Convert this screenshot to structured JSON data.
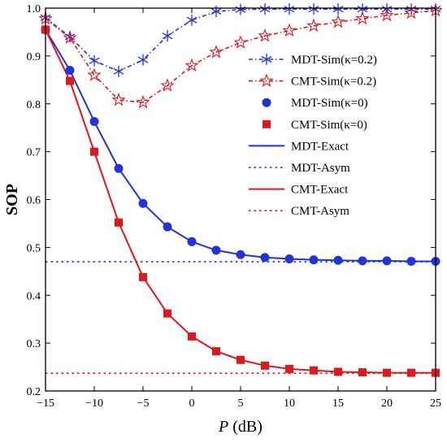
{
  "chart_data": {
    "type": "line",
    "xlabel_var": "P",
    "xlabel_unit": " (dB)",
    "ylabel": "SOP",
    "xlim": [
      -15,
      25
    ],
    "ylim": [
      0.2,
      1.0
    ],
    "xticks": [
      -15,
      -10,
      -5,
      0,
      5,
      10,
      15,
      20,
      25
    ],
    "yticks": [
      0.2,
      0.3,
      0.4,
      0.5,
      0.6,
      0.7,
      0.8,
      0.9,
      1.0
    ],
    "ytick_labels": [
      "0.2",
      "0.3",
      "0.4",
      "0.5",
      "0.6",
      "0.7",
      "0.8",
      "0.9",
      "1.0"
    ],
    "grid": false,
    "legend_position": "right",
    "colors": {
      "blue": "#1f33e0",
      "red": "#e3161b"
    },
    "series": [
      {
        "name": "MDT-Sim(κ=0.2)",
        "color": "blue",
        "style": "dashdot",
        "marker": "asterisk",
        "x": [
          -15,
          -12.5,
          -10,
          -7.5,
          -5,
          -2.5,
          0,
          2.5,
          5,
          7.5,
          10,
          12.5,
          15,
          17.5,
          20,
          22.5,
          25
        ],
        "y": [
          0.98,
          0.94,
          0.89,
          0.868,
          0.892,
          0.942,
          0.975,
          0.993,
          0.997,
          0.998,
          0.998,
          0.998,
          0.998,
          0.998,
          0.998,
          0.998,
          0.998
        ]
      },
      {
        "name": "CMT-Sim(κ=0.2)",
        "color": "red",
        "style": "dashdot",
        "marker": "star",
        "x": [
          -15,
          -12.5,
          -10,
          -7.5,
          -5,
          -2.5,
          0,
          2.5,
          5,
          7.5,
          10,
          12.5,
          15,
          17.5,
          20,
          22.5,
          25
        ],
        "y": [
          0.978,
          0.938,
          0.86,
          0.808,
          0.803,
          0.838,
          0.88,
          0.908,
          0.928,
          0.942,
          0.953,
          0.963,
          0.971,
          0.978,
          0.985,
          0.99,
          0.995
        ]
      },
      {
        "name": "MDT-Sim(κ=0)",
        "color": "blue",
        "style": "none",
        "marker": "circle",
        "x": [
          -15,
          -12.5,
          -10,
          -7.5,
          -5,
          -2.5,
          0,
          2.5,
          5,
          7.5,
          10,
          12.5,
          15,
          17.5,
          20,
          22.5,
          25
        ],
        "y": [
          0.955,
          0.87,
          0.763,
          0.665,
          0.592,
          0.543,
          0.512,
          0.494,
          0.485,
          0.479,
          0.476,
          0.474,
          0.473,
          0.472,
          0.472,
          0.471,
          0.471
        ]
      },
      {
        "name": "CMT-Sim(κ=0)",
        "color": "red",
        "style": "none",
        "marker": "square",
        "x": [
          -15,
          -12.5,
          -10,
          -7.5,
          -5,
          -2.5,
          0,
          2.5,
          5,
          7.5,
          10,
          12.5,
          15,
          17.5,
          20,
          22.5,
          25
        ],
        "y": [
          0.955,
          0.848,
          0.7,
          0.552,
          0.438,
          0.362,
          0.314,
          0.283,
          0.265,
          0.253,
          0.246,
          0.243,
          0.24,
          0.239,
          0.238,
          0.238,
          0.238
        ]
      },
      {
        "name": "MDT-Exact",
        "color": "blue",
        "style": "solid",
        "marker": "none",
        "x": [
          -15,
          -12.5,
          -10,
          -7.5,
          -5,
          -2.5,
          0,
          2.5,
          5,
          7.5,
          10,
          12.5,
          15,
          17.5,
          20,
          22.5,
          25
        ],
        "y": [
          0.955,
          0.87,
          0.763,
          0.665,
          0.592,
          0.543,
          0.512,
          0.494,
          0.485,
          0.479,
          0.476,
          0.474,
          0.473,
          0.472,
          0.472,
          0.471,
          0.471
        ]
      },
      {
        "name": "MDT-Asym",
        "color": "blue",
        "style": "dotted",
        "marker": "none",
        "x": [
          -15,
          25
        ],
        "y": [
          0.47,
          0.47
        ]
      },
      {
        "name": "CMT-Exact",
        "color": "red",
        "style": "solid",
        "marker": "none",
        "x": [
          -15,
          -12.5,
          -10,
          -7.5,
          -5,
          -2.5,
          0,
          2.5,
          5,
          7.5,
          10,
          12.5,
          15,
          17.5,
          20,
          22.5,
          25
        ],
        "y": [
          0.955,
          0.848,
          0.7,
          0.552,
          0.438,
          0.362,
          0.314,
          0.283,
          0.265,
          0.253,
          0.246,
          0.243,
          0.24,
          0.239,
          0.238,
          0.238,
          0.238
        ]
      },
      {
        "name": "CMT-Asym",
        "color": "red",
        "style": "dotted",
        "marker": "none",
        "x": [
          -15,
          25
        ],
        "y": [
          0.237,
          0.237
        ]
      }
    ]
  }
}
